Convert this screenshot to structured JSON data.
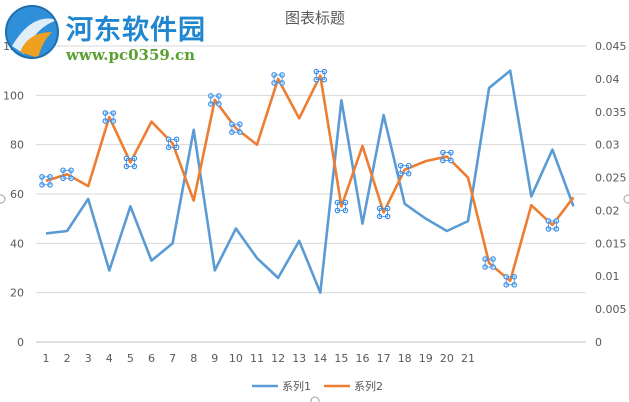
{
  "watermark": {
    "site_name": "河东软件园",
    "url": "www.pc0359.cn"
  },
  "chart_data": {
    "type": "line",
    "title": "图表标题",
    "categories": [
      "1",
      "2",
      "3",
      "4",
      "5",
      "6",
      "7",
      "8",
      "9",
      "10",
      "11",
      "12",
      "13",
      "14",
      "15",
      "16",
      "17",
      "18",
      "19",
      "20",
      "21",
      "",
      "",
      "",
      "",
      ""
    ],
    "y_left": {
      "min": 0,
      "max": 120,
      "ticks": [
        "0",
        "20",
        "40",
        "60",
        "80",
        "100",
        "120"
      ]
    },
    "y_right": {
      "min": 0,
      "max": 0.045,
      "ticks": [
        "0",
        "0.005",
        "0.01",
        "0.015",
        "0.02",
        "0.025",
        "0.03",
        "0.035",
        "0.04",
        "0.045"
      ]
    },
    "grid": true,
    "legend": "bottom",
    "series": [
      {
        "name": "系列1",
        "axis": "left",
        "color": "#5b9bd5",
        "values": [
          44,
          45,
          58,
          29,
          55,
          33,
          40,
          86,
          29,
          46,
          34,
          26,
          41,
          20,
          98,
          48,
          92,
          56,
          50,
          45,
          49,
          103,
          110,
          59,
          78,
          55
        ]
      },
      {
        "name": "系列2",
        "axis": "right",
        "color": "#ed7d31",
        "values": [
          0.0245,
          0.0255,
          0.0237,
          0.0342,
          0.0273,
          0.0335,
          0.0302,
          0.0215,
          0.0368,
          0.0325,
          0.03,
          0.04,
          0.034,
          0.0405,
          0.0206,
          0.0298,
          0.0197,
          0.0262,
          0.0275,
          0.0282,
          0.025,
          0.012,
          0.0093,
          0.0208,
          0.0178,
          0.022
        ]
      }
    ],
    "markers_on_series": "系列2",
    "marker_indices": [
      0,
      1,
      3,
      4,
      6,
      8,
      9,
      11,
      13,
      14,
      16,
      17,
      19,
      21,
      22,
      24
    ]
  }
}
